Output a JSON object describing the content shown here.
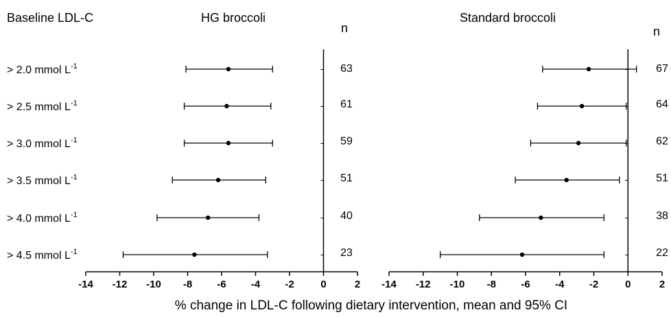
{
  "chart_data": [
    {
      "type": "forest",
      "title": "HG broccoli",
      "n_header": "n",
      "xlim": [
        -14,
        2
      ],
      "xticks": [
        -14,
        -12,
        -10,
        -8,
        -6,
        -4,
        -2,
        0,
        2
      ],
      "reference_line": 0,
      "rows": [
        {
          "label": "> 2.0 mmol L",
          "unit_sup": "-1",
          "mean": -5.6,
          "ci_low": -8.1,
          "ci_high": -3.0,
          "n": "63"
        },
        {
          "label": "> 2.5 mmol L",
          "unit_sup": "-1",
          "mean": -5.7,
          "ci_low": -8.2,
          "ci_high": -3.1,
          "n": "61"
        },
        {
          "label": "> 3.0 mmol L",
          "unit_sup": "-1",
          "mean": -5.6,
          "ci_low": -8.2,
          "ci_high": -3.0,
          "n": "59"
        },
        {
          "label": "> 3.5 mmol L",
          "unit_sup": "-1",
          "mean": -6.2,
          "ci_low": -8.9,
          "ci_high": -3.4,
          "n": "51"
        },
        {
          "label": "> 4.0 mmol L",
          "unit_sup": "-1",
          "mean": -6.8,
          "ci_low": -9.8,
          "ci_high": -3.8,
          "n": "40"
        },
        {
          "label": "> 4.5 mmol L",
          "unit_sup": "-1",
          "mean": -7.6,
          "ci_low": -11.8,
          "ci_high": -3.3,
          "n": "23"
        }
      ]
    },
    {
      "type": "forest",
      "title": "Standard broccoli",
      "n_header": "n",
      "xlim": [
        -14,
        2
      ],
      "xticks": [
        -14,
        -12,
        -10,
        -8,
        -6,
        -4,
        -2,
        0,
        2
      ],
      "reference_line": 0,
      "rows": [
        {
          "label": "> 2.0 mmol L",
          "unit_sup": "-1",
          "mean": -2.3,
          "ci_low": -5.0,
          "ci_high": 0.5,
          "n": "67"
        },
        {
          "label": "> 2.5 mmol L",
          "unit_sup": "-1",
          "mean": -2.7,
          "ci_low": -5.3,
          "ci_high": -0.1,
          "n": "64"
        },
        {
          "label": "> 3.0 mmol L",
          "unit_sup": "-1",
          "mean": -2.9,
          "ci_low": -5.7,
          "ci_high": -0.1,
          "n": "62"
        },
        {
          "label": "> 3.5 mmol L",
          "unit_sup": "-1",
          "mean": -3.6,
          "ci_low": -6.6,
          "ci_high": -0.5,
          "n": "51"
        },
        {
          "label": "> 4.0 mmol L",
          "unit_sup": "-1",
          "mean": -5.1,
          "ci_low": -8.7,
          "ci_high": -1.4,
          "n": "38"
        },
        {
          "label": "> 4.5 mmol L",
          "unit_sup": "-1",
          "mean": -6.2,
          "ci_low": -11.0,
          "ci_high": -1.4,
          "n": "22"
        }
      ]
    }
  ],
  "row_header": "Baseline LDL-C",
  "x_axis_label": "% change in LDL-C following dietary intervention, mean and 95% CI"
}
